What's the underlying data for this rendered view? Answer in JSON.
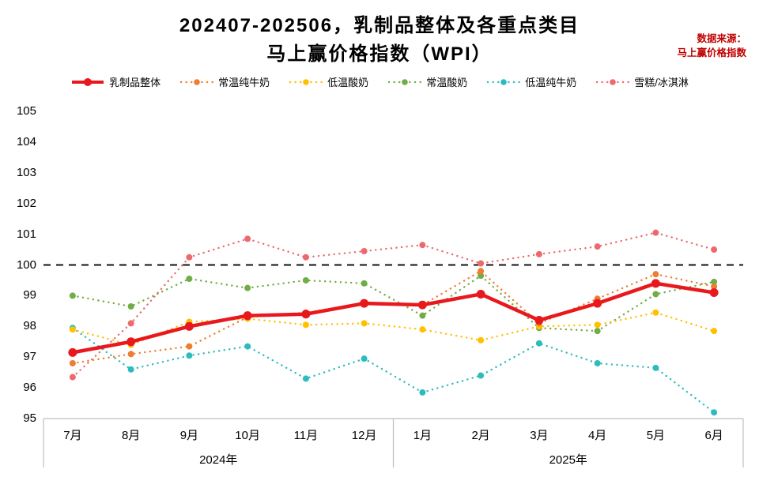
{
  "title": {
    "line1": "202407-202506，乳制品整体及各重点类目",
    "line2": "马上赢价格指数（WPI）"
  },
  "source": {
    "line1": "数据来源：",
    "line2": "马上赢价格指数"
  },
  "chart_data": {
    "type": "line",
    "x": [
      "7月",
      "8月",
      "9月",
      "10月",
      "11月",
      "12月",
      "1月",
      "2月",
      "3月",
      "4月",
      "5月",
      "6月"
    ],
    "year_groups": [
      {
        "label": "2024年",
        "span": 6
      },
      {
        "label": "2025年",
        "span": 6
      }
    ],
    "ylim": [
      95,
      105
    ],
    "ytick_step": 1,
    "reference_line": 100,
    "grid": "off",
    "legend_position": "top",
    "axis_color": "#bfbfbf",
    "reference_line_color": "#111111",
    "series": [
      {
        "name": "乳制品整体",
        "color": "#e8181c",
        "style": "solid-thick",
        "values": [
          97.15,
          97.5,
          98.0,
          98.35,
          98.4,
          98.75,
          98.7,
          99.05,
          98.2,
          98.75,
          99.4,
          99.1
        ]
      },
      {
        "name": "常温纯牛奶",
        "color": "#ed7d31",
        "style": "dotted",
        "values": [
          96.8,
          97.1,
          97.35,
          98.3,
          98.45,
          98.75,
          98.7,
          99.8,
          98.1,
          98.9,
          99.7,
          99.3
        ]
      },
      {
        "name": "低温酸奶",
        "color": "#ffc000",
        "style": "dotted",
        "values": [
          97.9,
          97.4,
          98.15,
          98.25,
          98.05,
          98.1,
          97.9,
          97.55,
          98.0,
          98.05,
          98.45,
          97.85
        ]
      },
      {
        "name": "常温酸奶",
        "color": "#70ad47",
        "style": "dotted",
        "values": [
          99.0,
          98.65,
          99.55,
          99.25,
          99.5,
          99.4,
          98.35,
          99.65,
          97.95,
          97.85,
          99.05,
          99.45
        ]
      },
      {
        "name": "低温纯牛奶",
        "color": "#2dbcbd",
        "style": "dotted",
        "values": [
          97.95,
          96.6,
          97.05,
          97.35,
          96.3,
          96.95,
          95.85,
          96.4,
          97.45,
          96.8,
          96.65,
          95.2
        ]
      },
      {
        "name": "雪糕/冰淇淋",
        "color": "#ec6a6d",
        "style": "dotted",
        "values": [
          96.35,
          98.1,
          100.25,
          100.85,
          100.25,
          100.45,
          100.65,
          100.05,
          100.35,
          100.6,
          101.05,
          100.5
        ]
      }
    ]
  }
}
